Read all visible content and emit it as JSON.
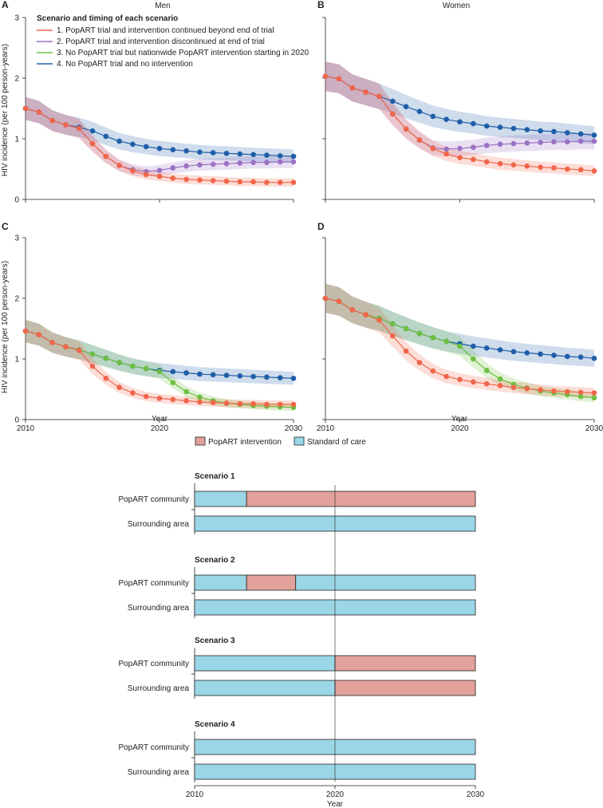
{
  "panels_figure": {
    "panels": [
      {
        "letter": "A",
        "title": "Men"
      },
      {
        "letter": "B",
        "title": "Women"
      },
      {
        "letter": "C",
        "title": ""
      },
      {
        "letter": "D",
        "title": ""
      }
    ],
    "ylabel": "HIV incidence (per 100 person-years)",
    "xlabel": "Year",
    "legend": {
      "title": "Scenario and timing of each scenario",
      "items": [
        {
          "label": "1. PopART trial and intervention continued beyond end of trial",
          "color": "#f0664a"
        },
        {
          "label": "2. PopART trial and intervention discontinued at end of trial",
          "color": "#9b72c4"
        },
        {
          "label": "3. No PopART trial but nationwide PopART intervention starting in 2020",
          "color": "#6cbf3f"
        },
        {
          "label": "4. No PopART trial and no intervention",
          "color": "#1f5ea8"
        }
      ]
    }
  },
  "timeline": {
    "legend": [
      {
        "label": "PopART intervention",
        "color": "#e3a19b"
      },
      {
        "label": "Standard of care",
        "color": "#9bd6e6"
      }
    ],
    "row_labels": [
      "PopART community",
      "Surrounding area"
    ],
    "scenario_titles": [
      "Scenario 1",
      "Scenario 2",
      "Scenario 3",
      "Scenario 4"
    ],
    "xlabel": "Year"
  },
  "chart_data": [
    {
      "type": "line",
      "title": "Men",
      "panel": "A",
      "xlabel": "",
      "ylabel": "HIV incidence (per 100 person-years)",
      "xlim": [
        2010,
        2030
      ],
      "ylim": [
        0,
        3
      ],
      "yticks": [
        0,
        1,
        2,
        3
      ],
      "x": [
        2010,
        2011,
        2012,
        2013,
        2014,
        2015,
        2016,
        2017,
        2018,
        2019,
        2020,
        2021,
        2022,
        2023,
        2024,
        2025,
        2026,
        2027,
        2028,
        2029,
        2030
      ],
      "series": [
        {
          "name": "4. No PopART trial and no intervention",
          "color": "#1f5ea8",
          "values": [
            1.5,
            1.44,
            1.3,
            1.23,
            1.19,
            1.13,
            1.04,
            0.96,
            0.91,
            0.87,
            0.84,
            0.82,
            0.8,
            0.78,
            0.77,
            0.76,
            0.75,
            0.74,
            0.73,
            0.72,
            0.71
          ]
        },
        {
          "name": "2. PopART trial and intervention discontinued at end of trial",
          "color": "#9b72c4",
          "values": [
            1.5,
            1.44,
            1.3,
            1.23,
            1.17,
            0.92,
            0.71,
            0.56,
            0.49,
            0.46,
            0.48,
            0.52,
            0.55,
            0.57,
            0.58,
            0.59,
            0.6,
            0.61,
            0.61,
            0.62,
            0.62
          ]
        },
        {
          "name": "1. PopART trial and intervention continued beyond end of trial",
          "color": "#f0664a",
          "values": [
            1.5,
            1.44,
            1.3,
            1.23,
            1.17,
            0.92,
            0.71,
            0.56,
            0.47,
            0.41,
            0.38,
            0.35,
            0.33,
            0.32,
            0.31,
            0.3,
            0.29,
            0.29,
            0.28,
            0.28,
            0.28
          ]
        }
      ]
    },
    {
      "type": "line",
      "title": "Women",
      "panel": "B",
      "xlabel": "",
      "ylabel": "",
      "xlim": [
        2010,
        2030
      ],
      "ylim": [
        0,
        3
      ],
      "yticks": [
        0,
        1,
        2,
        3
      ],
      "x": [
        2010,
        2011,
        2012,
        2013,
        2014,
        2015,
        2016,
        2017,
        2018,
        2019,
        2020,
        2021,
        2022,
        2023,
        2024,
        2025,
        2026,
        2027,
        2028,
        2029,
        2030
      ],
      "series": [
        {
          "name": "4. No PopART trial and no intervention",
          "color": "#1f5ea8",
          "values": [
            2.03,
            1.99,
            1.84,
            1.77,
            1.7,
            1.62,
            1.53,
            1.45,
            1.37,
            1.32,
            1.28,
            1.25,
            1.21,
            1.19,
            1.17,
            1.15,
            1.13,
            1.12,
            1.1,
            1.08,
            1.06
          ]
        },
        {
          "name": "2. PopART trial and intervention discontinued at end of trial",
          "color": "#9b72c4",
          "values": [
            2.03,
            1.99,
            1.84,
            1.77,
            1.7,
            1.41,
            1.16,
            0.98,
            0.85,
            0.83,
            0.84,
            0.86,
            0.89,
            0.91,
            0.92,
            0.93,
            0.94,
            0.95,
            0.95,
            0.96,
            0.96
          ]
        },
        {
          "name": "1. PopART trial and intervention continued beyond end of trial",
          "color": "#f0664a",
          "values": [
            2.03,
            1.99,
            1.84,
            1.77,
            1.7,
            1.41,
            1.16,
            0.98,
            0.84,
            0.75,
            0.69,
            0.66,
            0.62,
            0.59,
            0.57,
            0.55,
            0.53,
            0.52,
            0.5,
            0.49,
            0.47
          ]
        }
      ]
    },
    {
      "type": "line",
      "title": "",
      "panel": "C",
      "xlabel": "Year",
      "ylabel": "HIV incidence (per 100 person-years)",
      "xlim": [
        2010,
        2030
      ],
      "ylim": [
        0,
        3
      ],
      "yticks": [
        0,
        1,
        2,
        3
      ],
      "xticks": [
        2010,
        2020,
        2030
      ],
      "x": [
        2010,
        2011,
        2012,
        2013,
        2014,
        2015,
        2016,
        2017,
        2018,
        2019,
        2020,
        2021,
        2022,
        2023,
        2024,
        2025,
        2026,
        2027,
        2028,
        2029,
        2030
      ],
      "series": [
        {
          "name": "4. No PopART trial and no intervention",
          "color": "#1f5ea8",
          "values": [
            1.46,
            1.4,
            1.27,
            1.2,
            1.15,
            1.08,
            1.01,
            0.94,
            0.88,
            0.84,
            0.81,
            0.79,
            0.77,
            0.75,
            0.74,
            0.73,
            0.72,
            0.71,
            0.7,
            0.69,
            0.68
          ]
        },
        {
          "name": "3. No PopART trial but nationwide PopART intervention starting in 2020",
          "color": "#6cbf3f",
          "values": [
            1.46,
            1.4,
            1.27,
            1.2,
            1.15,
            1.08,
            1.01,
            0.94,
            0.88,
            0.84,
            0.79,
            0.61,
            0.46,
            0.37,
            0.31,
            0.27,
            0.25,
            0.23,
            0.22,
            0.21,
            0.2
          ]
        },
        {
          "name": "1. PopART trial and intervention continued beyond end of trial",
          "color": "#f0664a",
          "values": [
            1.46,
            1.4,
            1.27,
            1.2,
            1.14,
            0.88,
            0.68,
            0.53,
            0.44,
            0.38,
            0.35,
            0.33,
            0.31,
            0.29,
            0.28,
            0.27,
            0.26,
            0.26,
            0.25,
            0.25,
            0.25
          ]
        }
      ]
    },
    {
      "type": "line",
      "title": "",
      "panel": "D",
      "xlabel": "Year",
      "ylabel": "",
      "xlim": [
        2010,
        2030
      ],
      "ylim": [
        0,
        3
      ],
      "yticks": [
        0,
        1,
        2,
        3
      ],
      "xticks": [
        2010,
        2020,
        2030
      ],
      "x": [
        2010,
        2011,
        2012,
        2013,
        2014,
        2015,
        2016,
        2017,
        2018,
        2019,
        2020,
        2021,
        2022,
        2023,
        2024,
        2025,
        2026,
        2027,
        2028,
        2029,
        2030
      ],
      "series": [
        {
          "name": "4. No PopART trial and no intervention",
          "color": "#1f5ea8",
          "values": [
            2.0,
            1.95,
            1.81,
            1.73,
            1.67,
            1.58,
            1.5,
            1.42,
            1.35,
            1.29,
            1.25,
            1.21,
            1.18,
            1.15,
            1.12,
            1.1,
            1.08,
            1.06,
            1.04,
            1.03,
            1.01
          ]
        },
        {
          "name": "3. No PopART trial but nationwide PopART intervention starting in 2020",
          "color": "#6cbf3f",
          "values": [
            2.0,
            1.95,
            1.81,
            1.73,
            1.67,
            1.58,
            1.5,
            1.42,
            1.35,
            1.29,
            1.21,
            1.0,
            0.81,
            0.67,
            0.58,
            0.52,
            0.47,
            0.44,
            0.41,
            0.38,
            0.36
          ]
        },
        {
          "name": "1. PopART trial and intervention continued beyond end of trial",
          "color": "#f0664a",
          "values": [
            2.0,
            1.95,
            1.81,
            1.73,
            1.64,
            1.38,
            1.13,
            0.94,
            0.8,
            0.71,
            0.66,
            0.62,
            0.59,
            0.56,
            0.53,
            0.51,
            0.49,
            0.47,
            0.46,
            0.45,
            0.44
          ]
        }
      ]
    },
    {
      "type": "timeline",
      "xlabel": "Year",
      "xlim": [
        2010,
        2030
      ],
      "xticks": [
        2010,
        2020,
        2030
      ],
      "scenarios": [
        {
          "title": "Scenario 1",
          "rows": [
            {
              "label": "PopART community",
              "segments": [
                {
                  "start": 2010,
                  "end": 2013.7,
                  "kind": "Standard of care"
                },
                {
                  "start": 2013.7,
                  "end": 2030,
                  "kind": "PopART intervention"
                }
              ]
            },
            {
              "label": "Surrounding area",
              "segments": [
                {
                  "start": 2010,
                  "end": 2030,
                  "kind": "Standard of care"
                }
              ]
            }
          ]
        },
        {
          "title": "Scenario 2",
          "rows": [
            {
              "label": "PopART community",
              "segments": [
                {
                  "start": 2010,
                  "end": 2013.7,
                  "kind": "Standard of care"
                },
                {
                  "start": 2013.7,
                  "end": 2017.2,
                  "kind": "PopART intervention"
                },
                {
                  "start": 2017.2,
                  "end": 2030,
                  "kind": "Standard of care"
                }
              ]
            },
            {
              "label": "Surrounding area",
              "segments": [
                {
                  "start": 2010,
                  "end": 2030,
                  "kind": "Standard of care"
                }
              ]
            }
          ]
        },
        {
          "title": "Scenario 3",
          "rows": [
            {
              "label": "PopART community",
              "segments": [
                {
                  "start": 2010,
                  "end": 2020,
                  "kind": "Standard of care"
                },
                {
                  "start": 2020,
                  "end": 2030,
                  "kind": "PopART intervention"
                }
              ]
            },
            {
              "label": "Surrounding area",
              "segments": [
                {
                  "start": 2010,
                  "end": 2020,
                  "kind": "Standard of care"
                },
                {
                  "start": 2020,
                  "end": 2030,
                  "kind": "PopART intervention"
                }
              ]
            }
          ]
        },
        {
          "title": "Scenario 4",
          "rows": [
            {
              "label": "PopART community",
              "segments": [
                {
                  "start": 2010,
                  "end": 2030,
                  "kind": "Standard of care"
                }
              ]
            },
            {
              "label": "Surrounding area",
              "segments": [
                {
                  "start": 2010,
                  "end": 2030,
                  "kind": "Standard of care"
                }
              ]
            }
          ]
        }
      ]
    }
  ]
}
